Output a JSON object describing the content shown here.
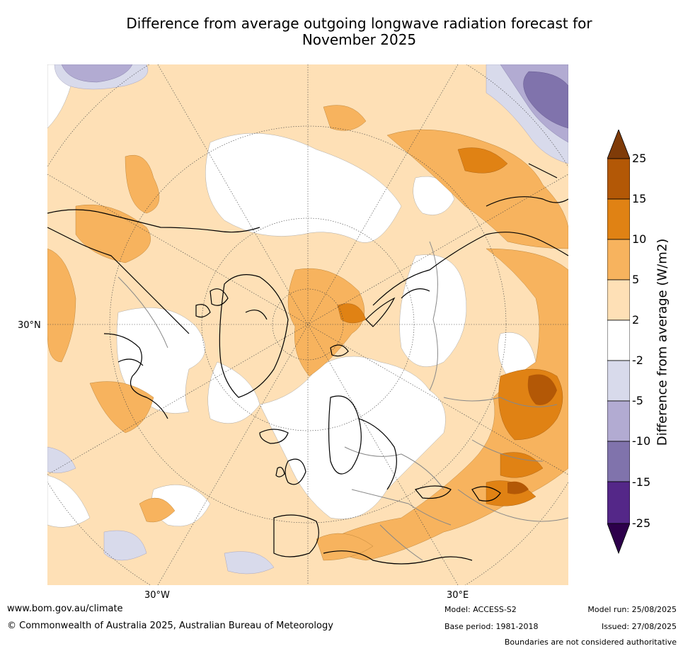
{
  "title_line1": "Difference from average outgoing longwave radiation forecast for",
  "title_line2": "November 2025",
  "map": {
    "projection": "north polar stereographic",
    "labels": {
      "lat_30n": "30°N",
      "lon_30w": "30°W",
      "lon_30e": "30°E"
    },
    "colors": {
      "lt25": "#2d004b",
      "m25_m15": "#542788",
      "m15_m10": "#8073ac",
      "m10_m5": "#b2abd2",
      "m5_m2": "#d8daeb",
      "m2_2": "#ffffff",
      "p2_5": "#fee0b6",
      "p5_10": "#f7b35e",
      "p10_15": "#e08214",
      "p15_25": "#b35806",
      "gt25": "#7f3b08"
    }
  },
  "colorbar": {
    "ticks": [
      "25",
      "15",
      "10",
      "5",
      "2",
      "-2",
      "-5",
      "-10",
      "-15",
      "-25"
    ],
    "label": "Difference from average (W/m2)"
  },
  "footer": {
    "website": "www.bom.gov.au/climate",
    "copyright": "© Commonwealth of Australia 2025, Australian Bureau of Meteorology",
    "model": "Model: ACCESS-S2",
    "base_period": "Base period: 1981-2018",
    "model_run": "Model run: 25/08/2025",
    "issued": "Issued: 27/08/2025",
    "disclaimer": "Boundaries are not considered authoritative"
  }
}
